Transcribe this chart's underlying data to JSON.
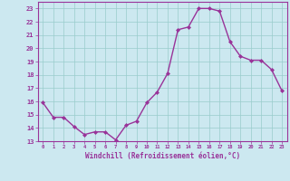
{
  "x": [
    0,
    1,
    2,
    3,
    4,
    5,
    6,
    7,
    8,
    9,
    10,
    11,
    12,
    13,
    14,
    15,
    16,
    17,
    18,
    19,
    20,
    21,
    22,
    23
  ],
  "y": [
    15.9,
    14.8,
    14.8,
    14.1,
    13.5,
    13.7,
    13.7,
    13.1,
    14.2,
    14.5,
    15.9,
    16.7,
    18.1,
    21.4,
    21.6,
    23.0,
    23.0,
    22.8,
    20.5,
    19.4,
    19.1,
    19.1,
    18.4,
    16.8
  ],
  "line_color": "#993399",
  "marker": "D",
  "marker_size": 2.0,
  "line_width": 1.0,
  "bg_color": "#cce8f0",
  "grid_color": "#99cccc",
  "xlabel": "Windchill (Refroidissement éolien,°C)",
  "yticks": [
    13,
    14,
    15,
    16,
    17,
    18,
    19,
    20,
    21,
    22,
    23
  ],
  "xlim": [
    -0.5,
    23.5
  ],
  "ylim": [
    13,
    23.5
  ],
  "purple": "#993399"
}
